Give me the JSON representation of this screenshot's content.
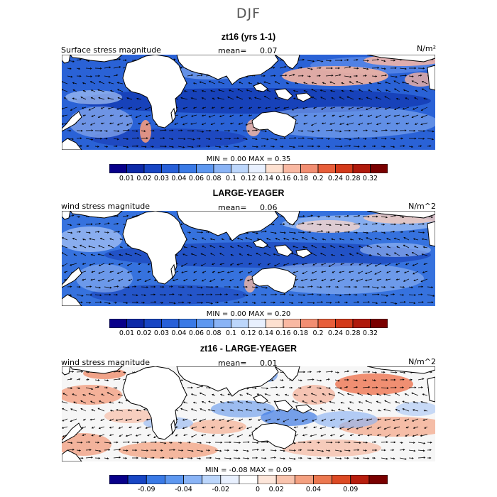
{
  "season": "DJF",
  "chart_data": [
    {
      "type": "heatmap",
      "title": "zt16 (yrs 1-1)",
      "variable": "Surface stress magnitude",
      "units": "N/m²",
      "mean_label": "mean=",
      "mean": "0.07",
      "min_label": "MIN =",
      "min": "0.00",
      "max_label": "MAX =",
      "max": "0.35",
      "colorbar_ticks": [
        "0.01",
        "0.02",
        "0.03",
        "0.04",
        "0.06",
        "0.08",
        "0.1",
        "0.12",
        "0.14",
        "0.16",
        "0.18",
        "0.2",
        "0.24",
        "0.28",
        "0.32"
      ],
      "colors": [
        "#08008a",
        "#0d2aa8",
        "#1846c4",
        "#2860d8",
        "#3a7ae6",
        "#5e98f0",
        "#8ab4f6",
        "#bcd6fb",
        "#e8f0fe",
        "#fde0d0",
        "#f9b8a2",
        "#f28e72",
        "#e85e3a",
        "#d43a1a",
        "#b01a0c",
        "#7a0000"
      ]
    },
    {
      "type": "heatmap",
      "title": "LARGE-YEAGER",
      "variable": "wind stress magnitude",
      "units": "N/m^2",
      "mean_label": "mean=",
      "mean": "0.06",
      "min_label": "MIN =",
      "min": "0.00",
      "max_label": "MAX =",
      "max": "0.20",
      "colorbar_ticks": [
        "0.01",
        "0.02",
        "0.03",
        "0.04",
        "0.06",
        "0.08",
        "0.1",
        "0.12",
        "0.14",
        "0.16",
        "0.18",
        "0.2",
        "0.24",
        "0.28",
        "0.32"
      ],
      "colors": [
        "#08008a",
        "#0d2aa8",
        "#1846c4",
        "#2860d8",
        "#3a7ae6",
        "#5e98f0",
        "#8ab4f6",
        "#bcd6fb",
        "#e8f0fe",
        "#fde0d0",
        "#f9b8a2",
        "#f28e72",
        "#e85e3a",
        "#d43a1a",
        "#b01a0c",
        "#7a0000"
      ]
    },
    {
      "type": "heatmap",
      "title": "zt16 - LARGE-YEAGER",
      "variable": "wind stress magnitude",
      "units": "N/m^2",
      "mean_label": "mean=",
      "mean": "0.01",
      "min_label": "MIN =",
      "min": "-0.08",
      "max_label": "MAX =",
      "max": "0.09",
      "colorbar_ticks": [
        "-0.09",
        "-0.04",
        "-0.02",
        "0",
        "0.02",
        "0.04",
        "0.09"
      ],
      "colors": [
        "#08008a",
        "#1846c4",
        "#3a7ae6",
        "#5e98f0",
        "#8ab4f6",
        "#bcd6fb",
        "#e8f0fe",
        "#ffffff",
        "#fde6da",
        "#f9c4ae",
        "#f4a080",
        "#ec7850",
        "#dc4a24",
        "#b81e0e",
        "#7a0000"
      ]
    }
  ]
}
